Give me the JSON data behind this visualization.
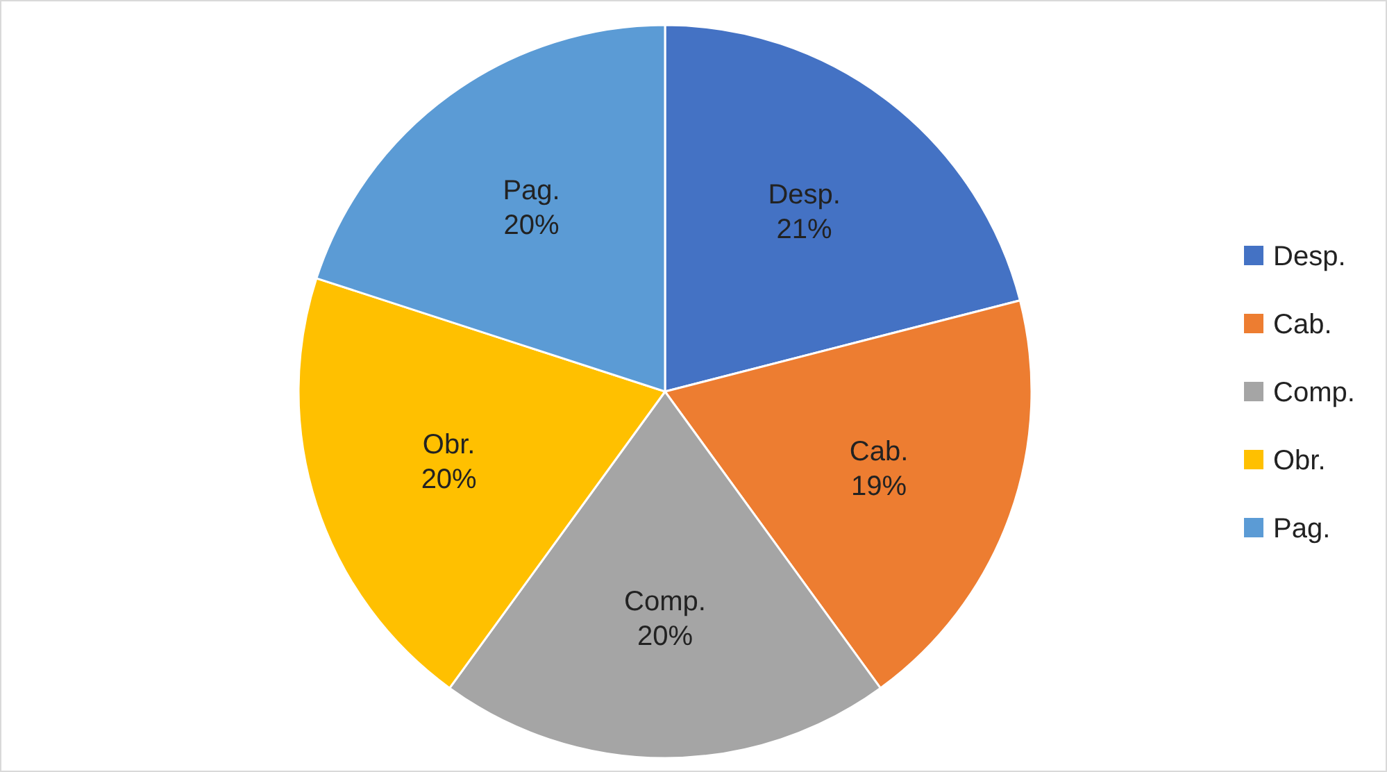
{
  "chart_data": {
    "type": "pie",
    "categories": [
      "Desp.",
      "Cab.",
      "Comp.",
      "Obr.",
      "Pag."
    ],
    "values": [
      21,
      19,
      20,
      20,
      20
    ],
    "colors": [
      "#4472c4",
      "#ed7d31",
      "#a5a5a5",
      "#ffc000",
      "#5b9bd5"
    ],
    "value_labels": [
      "21%",
      "19%",
      "20%",
      "20%",
      "20%"
    ],
    "legend": "right"
  }
}
